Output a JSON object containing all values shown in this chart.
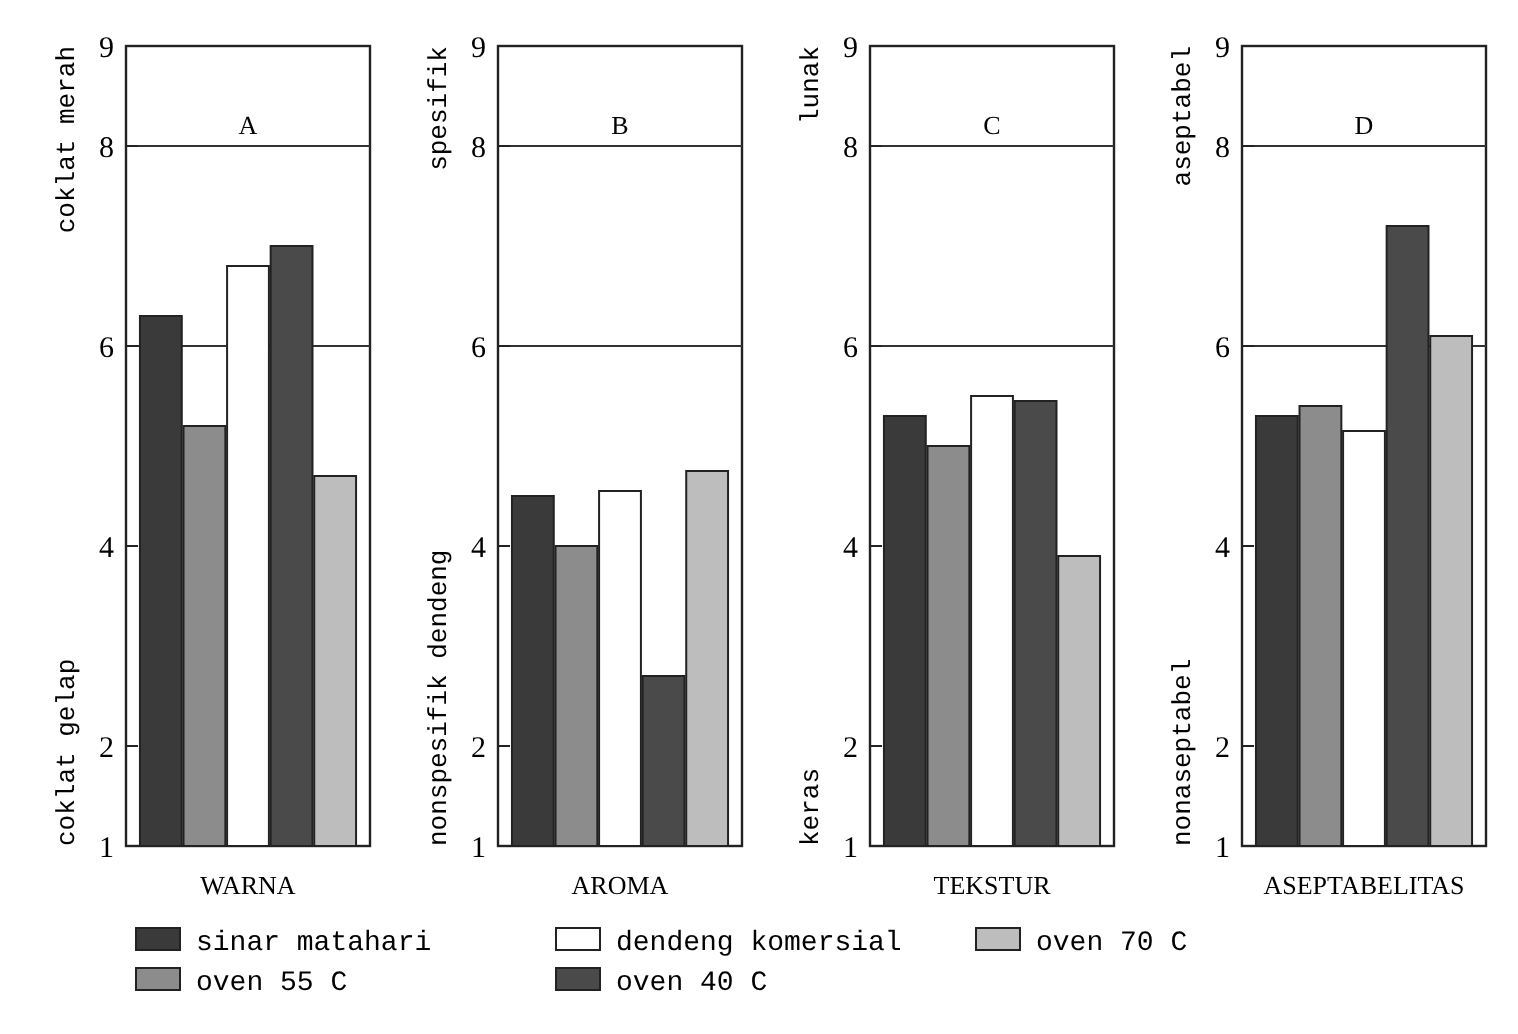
{
  "chart_data": [
    {
      "type": "bar",
      "xlabel": "WARNA",
      "ylabel": "coklat gelap",
      "annotations": [
        "A",
        "coklat merah"
      ],
      "categories": [
        null
      ],
      "ylim": [
        1,
        9
      ],
      "yticks": [
        1,
        2,
        4,
        6,
        8,
        9
      ],
      "legend": "bottom",
      "ref_lines": [
        {
          "axis": "y",
          "value": 6
        },
        {
          "axis": "y",
          "value": 8
        }
      ],
      "series": [
        {
          "name": "sinar matahari",
          "color": "#3a3a3a",
          "values": [
            6.3
          ]
        },
        {
          "name": "oven 55 C",
          "color": "#8c8c8c",
          "values": [
            5.2
          ]
        },
        {
          "name": "dendeng komersial",
          "color": "#ffffff",
          "values": [
            6.8
          ]
        },
        {
          "name": "oven 40 C",
          "color": "#4a4a4a",
          "values": [
            7.0
          ]
        },
        {
          "name": "oven 70 C",
          "color": "#bdbdbd",
          "values": [
            4.7
          ]
        }
      ]
    },
    {
      "type": "bar",
      "xlabel": "AROMA",
      "ylabel": "nonspesifik dendeng",
      "annotations": [
        "B",
        "spesifik"
      ],
      "categories": [
        null
      ],
      "ylim": [
        1,
        9
      ],
      "yticks": [
        1,
        2,
        4,
        6,
        8,
        9
      ],
      "ref_lines": [
        {
          "axis": "y",
          "value": 6
        },
        {
          "axis": "y",
          "value": 8
        }
      ],
      "series": [
        {
          "color": "#3a3a3a",
          "values": [
            4.5
          ]
        },
        {
          "color": "#8c8c8c",
          "values": [
            4.0
          ]
        },
        {
          "color": "#ffffff",
          "values": [
            4.55
          ]
        },
        {
          "color": "#4a4a4a",
          "values": [
            2.7
          ]
        },
        {
          "color": "#bdbdbd",
          "values": [
            4.75
          ]
        }
      ]
    },
    {
      "type": "bar",
      "xlabel": "TEKSTUR",
      "ylabel": "keras",
      "annotations": [
        "C",
        "lunak"
      ],
      "categories": [
        null
      ],
      "ylim": [
        1,
        9
      ],
      "yticks": [
        1,
        2,
        4,
        6,
        8,
        9
      ],
      "ref_lines": [
        {
          "axis": "y",
          "value": 6
        },
        {
          "axis": "y",
          "value": 8
        }
      ],
      "series": [
        {
          "color": "#3a3a3a",
          "values": [
            5.3
          ]
        },
        {
          "color": "#8c8c8c",
          "values": [
            5.0
          ]
        },
        {
          "color": "#ffffff",
          "values": [
            5.5
          ]
        },
        {
          "color": "#4a4a4a",
          "values": [
            5.45
          ]
        },
        {
          "color": "#bdbdbd",
          "values": [
            3.9
          ]
        }
      ]
    },
    {
      "type": "bar",
      "xlabel": "ASEPTABELITAS",
      "ylabel": "nonaseptabel",
      "annotations": [
        "D",
        "aseptabel"
      ],
      "categories": [
        null
      ],
      "ylim": [
        1,
        9
      ],
      "yticks": [
        1,
        2,
        4,
        6,
        8,
        9
      ],
      "ref_lines": [
        {
          "axis": "y",
          "value": 6
        },
        {
          "axis": "y",
          "value": 8
        }
      ],
      "series": [
        {
          "color": "#3a3a3a",
          "values": [
            5.3
          ]
        },
        {
          "color": "#8c8c8c",
          "values": [
            5.4
          ]
        },
        {
          "color": "#ffffff",
          "values": [
            5.15
          ]
        },
        {
          "color": "#4a4a4a",
          "values": [
            7.2
          ]
        },
        {
          "color": "#bdbdbd",
          "values": [
            6.1
          ]
        }
      ]
    }
  ]
}
